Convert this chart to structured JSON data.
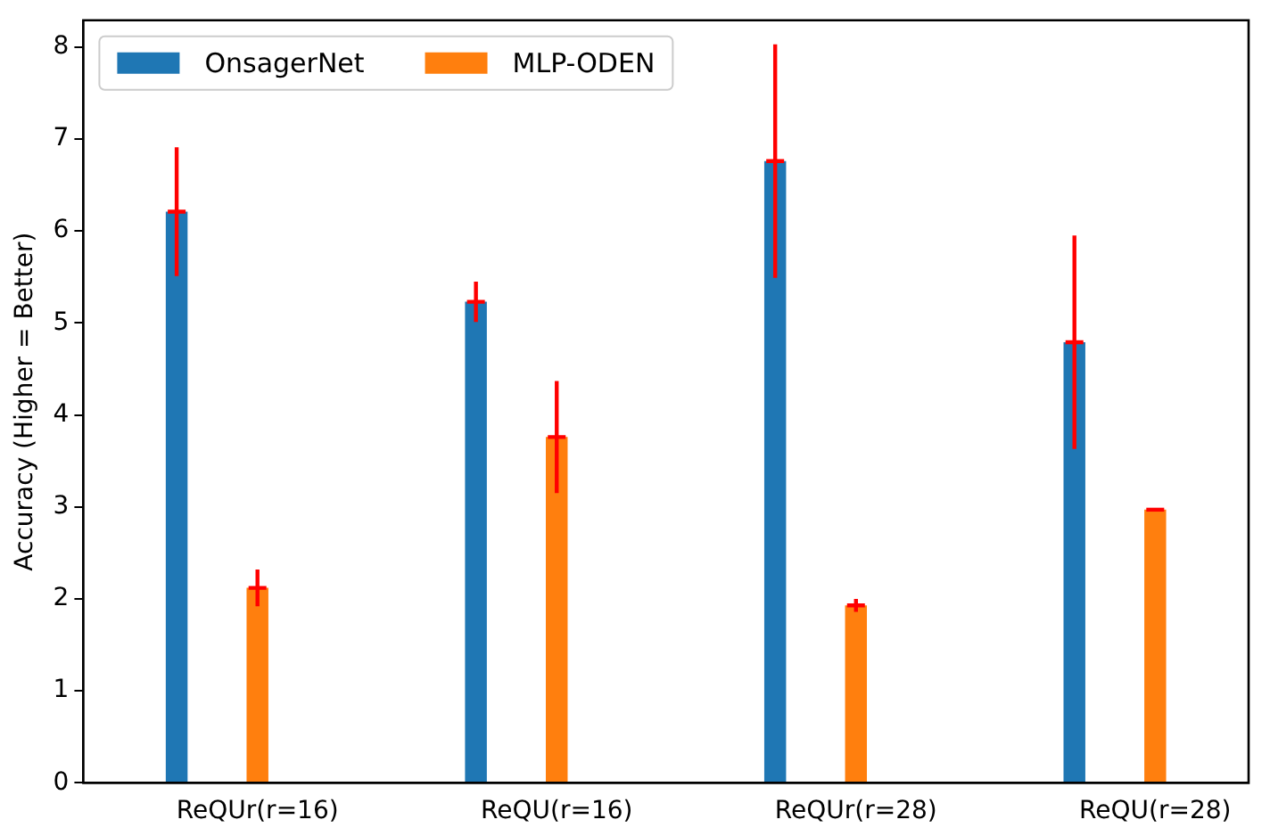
{
  "chart_data": {
    "type": "bar",
    "ylabel": "Accuracy (Higher = Better)",
    "categories": [
      "ReQUr(r=16)",
      "ReQU(r=16)",
      "ReQUr(r=28)",
      "ReQU(r=28)"
    ],
    "series": [
      {
        "name": "OnsagerNet",
        "color": "#1f77b4",
        "values": [
          6.21,
          5.23,
          6.76,
          4.79
        ],
        "errors": [
          0.7,
          0.22,
          1.27,
          1.16
        ]
      },
      {
        "name": "MLP-ODEN",
        "color": "#ff7f0e",
        "values": [
          2.12,
          3.76,
          1.93,
          2.97
        ],
        "errors": [
          0.2,
          0.61,
          0.07,
          0
        ]
      }
    ],
    "ylim": [
      0,
      8.29
    ],
    "yticks": [
      0,
      1,
      2,
      3,
      4,
      5,
      6,
      7,
      8
    ],
    "grid": false,
    "legend": "top left"
  }
}
